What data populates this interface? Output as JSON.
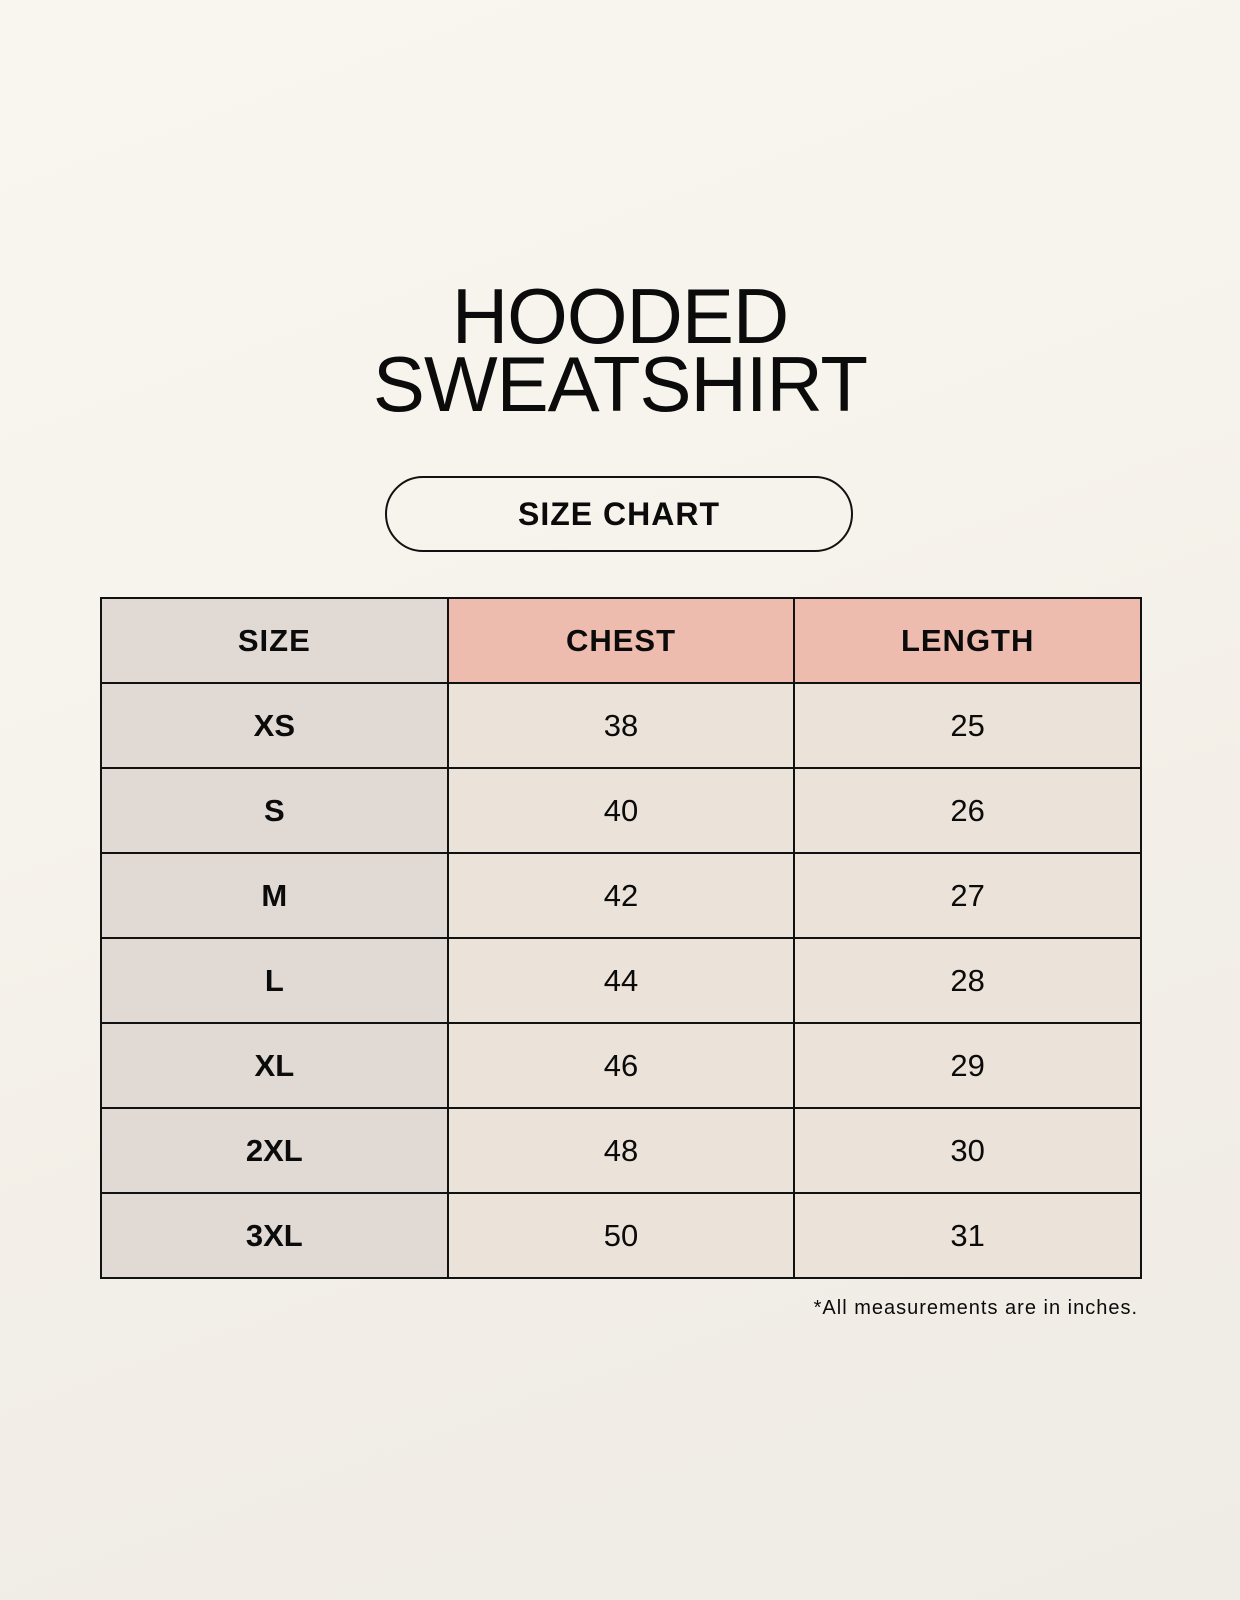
{
  "title": {
    "line1": "HOODED",
    "line2": "SWEATSHIRT"
  },
  "subtitle": "SIZE CHART",
  "table": {
    "headers": [
      "SIZE",
      "CHEST",
      "LENGTH"
    ],
    "rows": [
      [
        "XS",
        "38",
        "25"
      ],
      [
        "S",
        "40",
        "26"
      ],
      [
        "M",
        "42",
        "27"
      ],
      [
        "L",
        "44",
        "28"
      ],
      [
        "XL",
        "46",
        "29"
      ],
      [
        "2XL",
        "48",
        "30"
      ],
      [
        "3XL",
        "50",
        "31"
      ]
    ]
  },
  "footnote": "*All measurements are in inches.",
  "colors": {
    "size_column": "#e0d9d4",
    "header_accent": "#edbcae",
    "cell": "#ebe3d9"
  }
}
